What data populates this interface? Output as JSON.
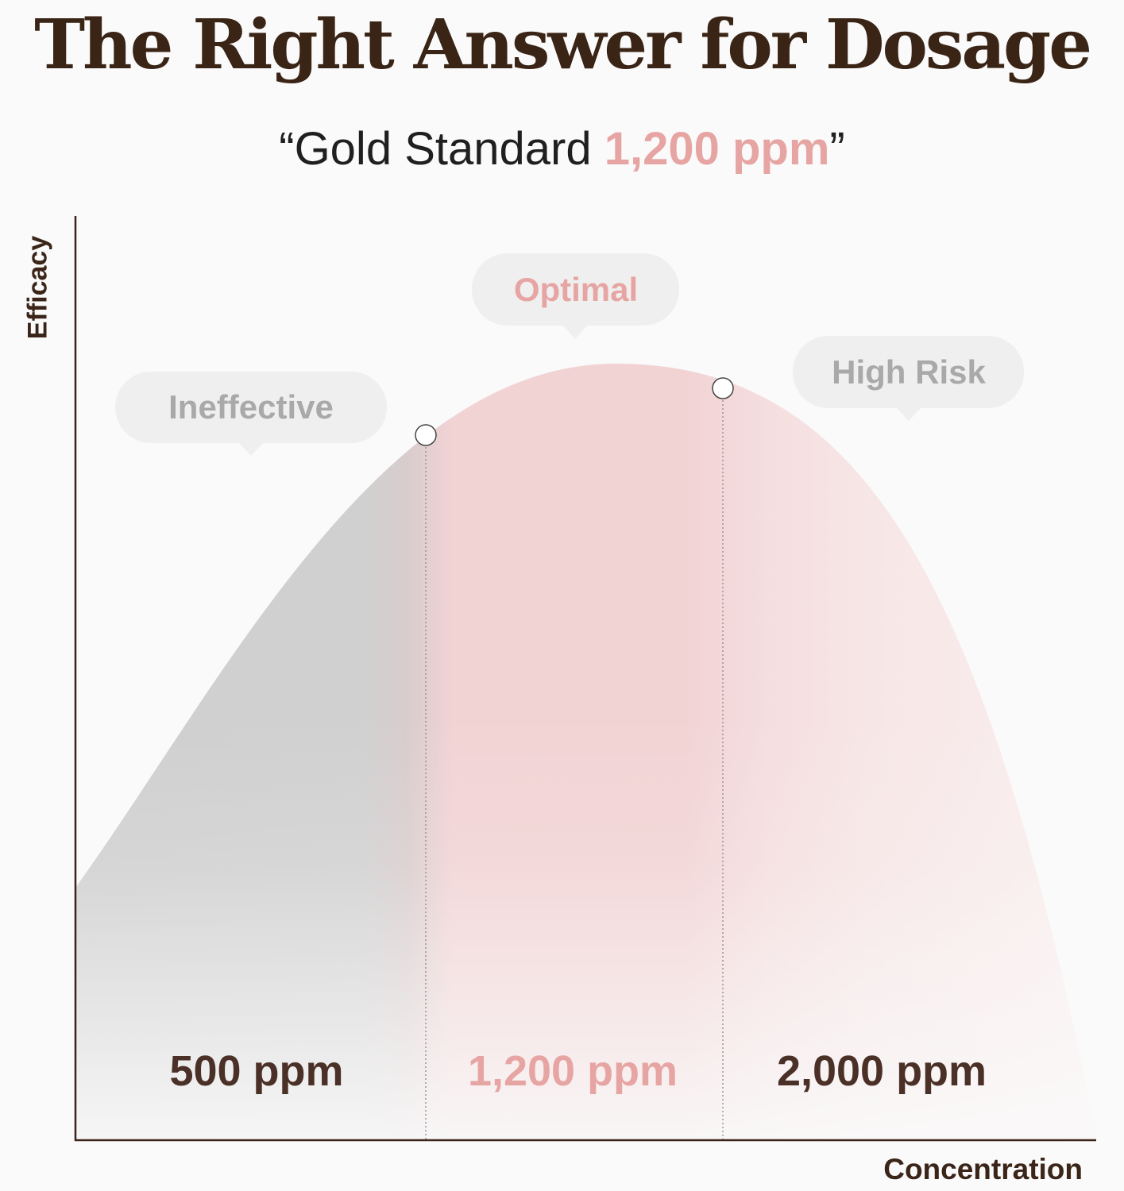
{
  "title": "The Right Answer for Dosage",
  "subtitle": {
    "prefix": "“Gold Standard ",
    "highlight": "1,200 ppm",
    "suffix": "”"
  },
  "colors": {
    "title": "#3a2415",
    "accent": "#e6a5a3",
    "axis": "#3b2418",
    "ineffective_fill": "#cfcfcf",
    "optimal_fill": "#f2d3d4",
    "bubble": "#efefef",
    "bubble_text": "#a9a9a9"
  },
  "chart_data": {
    "type": "area",
    "title": "The Right Answer for Dosage",
    "subtitle": "“Gold Standard 1,200 ppm”",
    "xlabel": "Concentration",
    "ylabel": "Efficacy",
    "curve": "bell",
    "zones": [
      {
        "label": "Ineffective",
        "value_label": "500 ppm",
        "color": "gray"
      },
      {
        "label": "Optimal",
        "value_label": "1,200 ppm",
        "color": "pink",
        "highlight": true
      },
      {
        "label": "High Risk",
        "value_label": "2,000 ppm",
        "color": "pink-fading"
      }
    ],
    "marker_count": 2,
    "grid": false,
    "axis_ticks": false
  }
}
